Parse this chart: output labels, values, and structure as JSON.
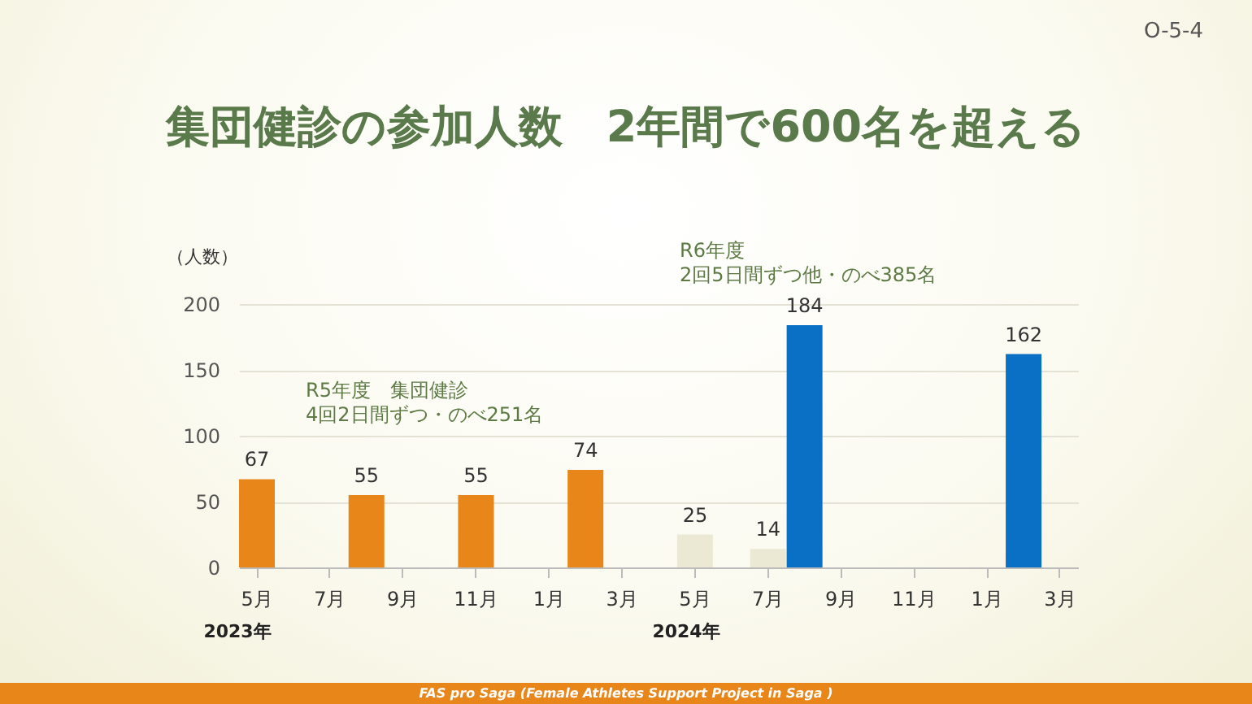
{
  "chart_data": {
    "type": "bar",
    "title": "集団健診の参加人数　2年間で600名を超える",
    "ylabel": "（人数）",
    "categories": [
      "5月",
      null,
      "7月",
      null,
      "9月",
      null,
      "11月",
      null,
      "1月",
      null,
      "3月",
      null,
      "5月",
      null,
      "7月",
      null,
      "9月",
      null,
      "11月",
      null,
      "1月",
      null,
      "3月"
    ],
    "series": [
      {
        "color": "#e8861a",
        "values": [
          67,
          null,
          null,
          55,
          null,
          null,
          55,
          null,
          null,
          74,
          null,
          null,
          null,
          null,
          null,
          null,
          null,
          null,
          null,
          null,
          null,
          null,
          null
        ]
      },
      {
        "color": "#ebe9d3",
        "values": [
          null,
          null,
          null,
          null,
          null,
          null,
          null,
          null,
          null,
          null,
          null,
          null,
          25,
          null,
          14,
          null,
          null,
          null,
          null,
          null,
          null,
          null,
          null
        ]
      },
      {
        "color": "#0a70c6",
        "values": [
          null,
          null,
          null,
          null,
          null,
          null,
          null,
          null,
          null,
          null,
          null,
          null,
          null,
          null,
          null,
          184,
          null,
          null,
          null,
          null,
          null,
          162,
          null
        ]
      }
    ],
    "ylim": [
      0,
      200
    ],
    "yticks": [
      0,
      50,
      100,
      150,
      200
    ],
    "grid": "y",
    "data_labels": true,
    "annotations": [
      "R5年度　集団健診\n4回2日間ずつ・のべ251名",
      "R6年度\n2回5日間ずつ他・のべ385名",
      "2023年",
      "2024年",
      "O-5-4",
      "FAS pro Saga (Female Athletes Support Project in Saga )"
    ]
  }
}
